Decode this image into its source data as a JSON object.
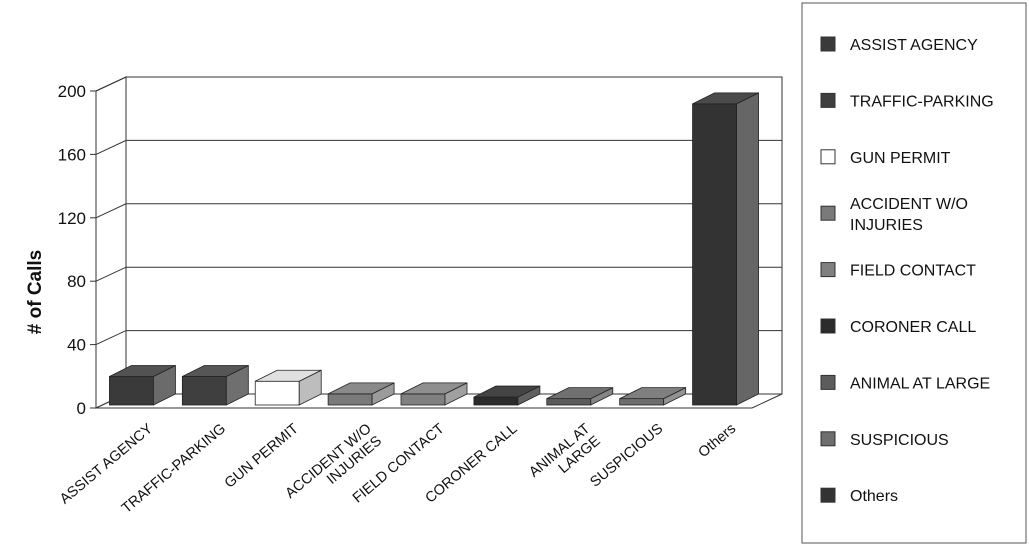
{
  "chart_data": {
    "type": "bar",
    "ylabel": "# of Calls",
    "xlabel": "",
    "ylim": [
      0,
      200
    ],
    "yticks": [
      0,
      40,
      80,
      120,
      160,
      200
    ],
    "grid": true,
    "legend_position": "right",
    "categories": [
      {
        "name": "ASSIST AGENCY",
        "label_lines": [
          "ASSIST AGENCY"
        ],
        "value": 18,
        "color": "#3a3a3a"
      },
      {
        "name": "TRAFFIC-PARKING",
        "label_lines": [
          "TRAFFIC-PARKING"
        ],
        "value": 18,
        "color": "#3f3f3f"
      },
      {
        "name": "GUN PERMIT",
        "label_lines": [
          "GUN PERMIT"
        ],
        "value": 15,
        "color": "#ffffff"
      },
      {
        "name": "ACCIDENT W/O INJURIES",
        "label_lines": [
          "ACCIDENT W/O",
          "INJURIES"
        ],
        "value": 7,
        "color": "#7a7a7a"
      },
      {
        "name": "FIELD CONTACT",
        "label_lines": [
          "FIELD CONTACT"
        ],
        "value": 7,
        "color": "#808080"
      },
      {
        "name": "CORONER CALL",
        "label_lines": [
          "CORONER CALL"
        ],
        "value": 5,
        "color": "#2b2b2b"
      },
      {
        "name": "ANIMAL AT LARGE",
        "label_lines": [
          "ANIMAL AT",
          "LARGE"
        ],
        "value": 4,
        "color": "#5c5c5c"
      },
      {
        "name": "SUSPICIOUS",
        "label_lines": [
          "SUSPICIOUS"
        ],
        "value": 4,
        "color": "#6e6e6e"
      },
      {
        "name": "Others",
        "label_lines": [
          "Others"
        ],
        "value": 190,
        "color": "#333333"
      }
    ],
    "legend": [
      {
        "label_lines": [
          "ASSIST AGENCY"
        ],
        "color": "#3a3a3a"
      },
      {
        "label_lines": [
          "TRAFFIC-PARKING"
        ],
        "color": "#3f3f3f"
      },
      {
        "label_lines": [
          "GUN PERMIT"
        ],
        "color": "#ffffff"
      },
      {
        "label_lines": [
          "ACCIDENT W/O",
          "INJURIES"
        ],
        "color": "#7a7a7a"
      },
      {
        "label_lines": [
          "FIELD CONTACT"
        ],
        "color": "#808080"
      },
      {
        "label_lines": [
          "CORONER CALL"
        ],
        "color": "#2b2b2b"
      },
      {
        "label_lines": [
          "ANIMAL AT LARGE"
        ],
        "color": "#5c5c5c"
      },
      {
        "label_lines": [
          "SUSPICIOUS"
        ],
        "color": "#6e6e6e"
      },
      {
        "label_lines": [
          "Others"
        ],
        "color": "#333333"
      }
    ]
  }
}
